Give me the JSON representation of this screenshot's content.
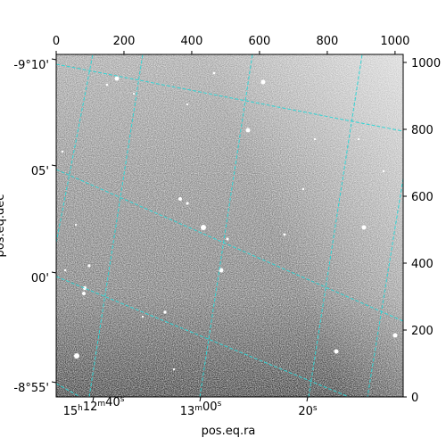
{
  "chart_data": {
    "type": "heatmap",
    "description_kind": "astronomical image with WCS coordinate grid overlay",
    "xlabel": "pos.eq.ra",
    "ylabel": "pos.eq.dec",
    "pixel_axis_bottom_top": {
      "range": [
        0,
        1024
      ],
      "ticks": [
        0,
        200,
        400,
        600,
        800,
        1000
      ]
    },
    "pixel_axis_right": {
      "range": [
        0,
        1024
      ],
      "ticks": [
        0,
        200,
        400,
        600,
        800,
        1000
      ]
    },
    "ra_ticks": [
      {
        "h": "15",
        "m": "12",
        "s": "40",
        "label": "15h12m40s"
      },
      {
        "m": "13",
        "s": "00",
        "label": "13m00s"
      },
      {
        "s": "20",
        "label": "20s"
      }
    ],
    "dec_ticks": [
      "-9°10'",
      "05'",
      "00'",
      "-8°55'"
    ],
    "colormap": "grayscale",
    "grid_color": "#2fd4d4",
    "grid": true
  }
}
